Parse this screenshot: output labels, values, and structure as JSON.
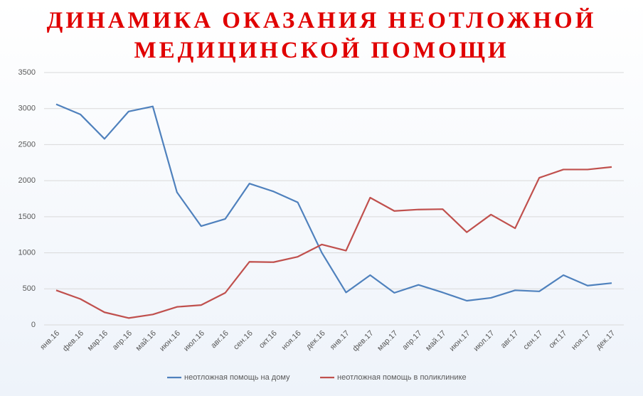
{
  "chart_data": {
    "type": "line",
    "title": "ДИНАМИКА ОКАЗАНИЯ НЕОТЛОЖНОЙ МЕДИЦИНСКОЙ ПОМОЩИ",
    "categories": [
      "янв.16",
      "фев.16",
      "мар.16",
      "апр.16",
      "май.16",
      "июн.16",
      "июл.16",
      "авг.16",
      "сен.16",
      "окт.16",
      "ноя.16",
      "дек.16",
      "янв.17",
      "фев.17",
      "мар.17",
      "апр.17",
      "май.17",
      "июн.17",
      "июл.17",
      "авг.17",
      "сен.17",
      "окт.17",
      "ноя.17",
      "дек.17"
    ],
    "series": [
      {
        "name": "неотложная помощь на дому",
        "color": "#4f81bd",
        "values": [
          3060,
          2920,
          2580,
          2960,
          3030,
          1840,
          1370,
          1470,
          1960,
          1850,
          1700,
          1000,
          450,
          690,
          445,
          555,
          450,
          335,
          375,
          480,
          465,
          690,
          545,
          580
        ]
      },
      {
        "name": "неотложная помощь в поликлинике",
        "color": "#c0504d",
        "values": [
          480,
          360,
          175,
          95,
          145,
          250,
          275,
          445,
          875,
          870,
          945,
          1115,
          1030,
          1765,
          1580,
          1600,
          1605,
          1285,
          1530,
          1340,
          2040,
          2155,
          2155,
          2190
        ]
      }
    ],
    "ylim": [
      0,
      3500
    ],
    "yticks": [
      0,
      500,
      1000,
      1500,
      2000,
      2500,
      3000,
      3500
    ],
    "grid": true,
    "legend": "bottom"
  }
}
